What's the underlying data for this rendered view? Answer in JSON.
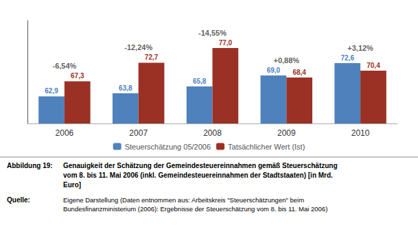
{
  "chart_data": {
    "type": "bar",
    "categories": [
      "2006",
      "2007",
      "2008",
      "2009",
      "2010"
    ],
    "series": [
      {
        "name": "Steuerschätzung 05/2006",
        "color": "#4F81BD",
        "values": [
          62.9,
          63.8,
          65.8,
          69.0,
          72.6
        ],
        "value_labels": [
          "62,9",
          "63,8",
          "65,8",
          "69,0",
          "72,6"
        ]
      },
      {
        "name": "Tatsächlicher Wert (Ist)",
        "color": "#9B3124",
        "values": [
          67.3,
          72.7,
          77.0,
          68.4,
          70.4
        ],
        "value_labels": [
          "67,3",
          "72,7",
          "77,0",
          "68,4",
          "70,4"
        ]
      }
    ],
    "annotations": [
      {
        "category": "2006",
        "text": "-6,54%"
      },
      {
        "category": "2007",
        "text": "-12,24%"
      },
      {
        "category": "2008",
        "text": "-14,55%"
      },
      {
        "category": "2009",
        "text": "+0,88%"
      },
      {
        "category": "2010",
        "text": "+3,12%"
      }
    ],
    "caption": {
      "label": "Abbildung 19:",
      "lines": [
        "Genauigkeit der Schätzung der Gemeindesteuereinnahmen gemäß Steuerschätzung",
        "vom 8. bis 11. Mai 2006 (inkl. Gemeindesteuereinnahmen der Stadtstaaten) [in Mrd.",
        "Euro]"
      ]
    },
    "source": {
      "label": "Quelle:",
      "lines": [
        "Eigene Darstellung (Daten entnommen aus: Arbeitskreis \"Steuerschätzungen\" beim",
        "Bundesfinanzministerium (2006): Ergebnisse der Steuerschätzung vom 8. bis 11. Mai 2006)"
      ]
    },
    "ylim": [
      55,
      85
    ],
    "yticks": [],
    "tick_labels": "x",
    "data_labels": true,
    "grid": false,
    "legend": "bottom"
  }
}
